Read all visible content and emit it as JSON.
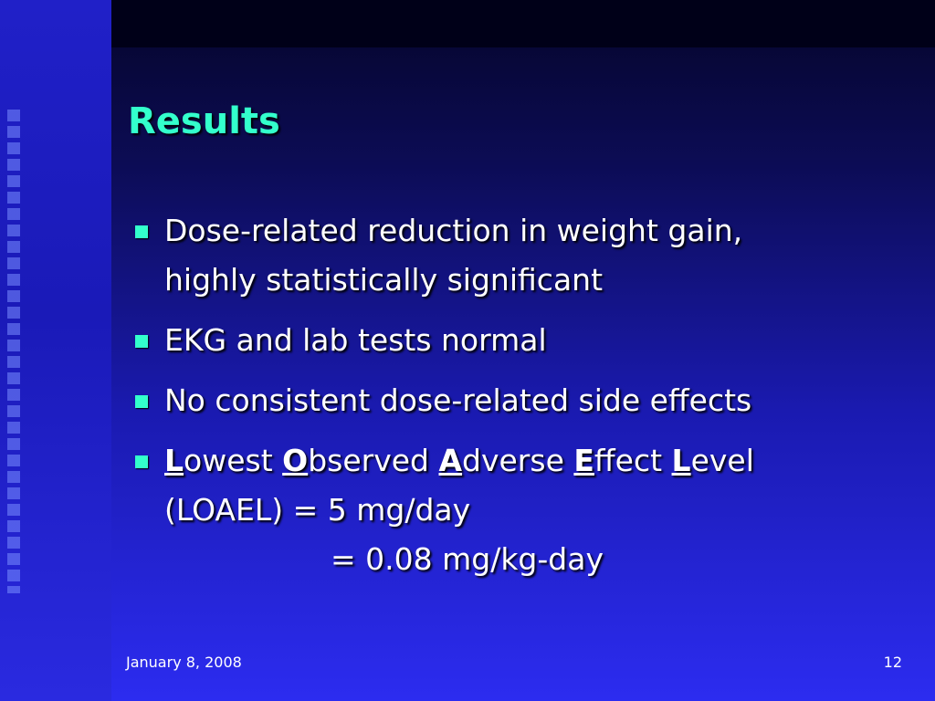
{
  "slide": {
    "title": "Results",
    "bullets": [
      {
        "lines": [
          [
            {
              "text": "Dose-related reduction in weight gain,"
            }
          ],
          [
            {
              "text": "highly statistically significant"
            }
          ]
        ]
      },
      {
        "lines": [
          [
            {
              "text": "EKG and lab tests normal"
            }
          ]
        ]
      },
      {
        "lines": [
          [
            {
              "text": "No consistent dose-related side effects"
            }
          ]
        ]
      },
      {
        "lines": [
          [
            {
              "text": "L",
              "bold_underline": true
            },
            {
              "text": "owest "
            },
            {
              "text": "O",
              "bold_underline": true
            },
            {
              "text": "bserved "
            },
            {
              "text": "A",
              "bold_underline": true
            },
            {
              "text": "dverse "
            },
            {
              "text": "E",
              "bold_underline": true
            },
            {
              "text": "ffect "
            },
            {
              "text": "L",
              "bold_underline": true
            },
            {
              "text": "evel"
            }
          ],
          [
            {
              "text": "(LOAEL) = 5 mg/day"
            }
          ],
          [
            {
              "text": "= 0.08 mg/kg-day"
            }
          ]
        ]
      }
    ],
    "footer": {
      "date": "January 8, 2008",
      "page": 12
    }
  }
}
